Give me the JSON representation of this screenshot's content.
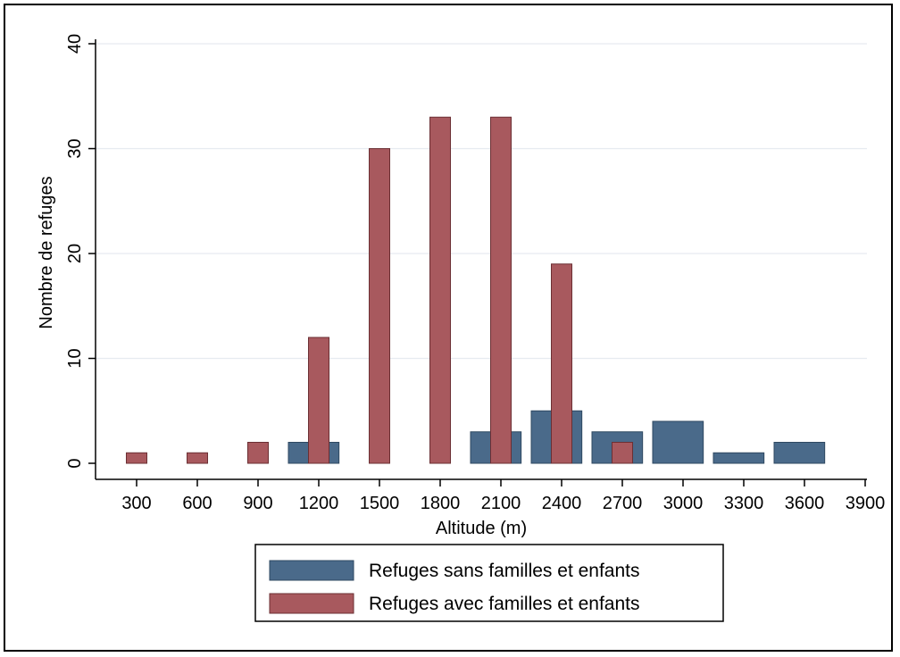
{
  "chart_data": {
    "type": "bar",
    "xlabel": "Altitude (m)",
    "ylabel": "Nombre de refuges",
    "x_ticks": [
      "300",
      "600",
      "900",
      "1200",
      "1500",
      "1800",
      "2100",
      "2400",
      "2700",
      "3000",
      "3300",
      "3600",
      "3900"
    ],
    "y_ticks": [
      "0",
      "10",
      "20",
      "30",
      "40"
    ],
    "ylim": [
      0,
      40
    ],
    "xlim": [
      150,
      3900
    ],
    "grid": true,
    "legend_position": "bottom",
    "series": [
      {
        "name": "Refuges sans familles et enfants",
        "color": "#4a6a8a",
        "bars": [
          {
            "x_start": 1050,
            "x_end": 1300,
            "value": 2
          },
          {
            "x_start": 1950,
            "x_end": 2200,
            "value": 3
          },
          {
            "x_start": 2250,
            "x_end": 2500,
            "value": 5
          },
          {
            "x_start": 2550,
            "x_end": 2800,
            "value": 3
          },
          {
            "x_start": 2850,
            "x_end": 3100,
            "value": 4
          },
          {
            "x_start": 3150,
            "x_end": 3400,
            "value": 1
          },
          {
            "x_start": 3450,
            "x_end": 3700,
            "value": 2
          }
        ]
      },
      {
        "name": "Refuges avec familles et enfants",
        "color": "#a8595e",
        "bars": [
          {
            "x": 300,
            "value": 1
          },
          {
            "x": 600,
            "value": 1
          },
          {
            "x": 900,
            "value": 2
          },
          {
            "x": 1200,
            "value": 12
          },
          {
            "x": 1500,
            "value": 30
          },
          {
            "x": 1800,
            "value": 33
          },
          {
            "x": 2100,
            "value": 33
          },
          {
            "x": 2400,
            "value": 19
          },
          {
            "x": 2700,
            "value": 2
          }
        ]
      }
    ]
  }
}
